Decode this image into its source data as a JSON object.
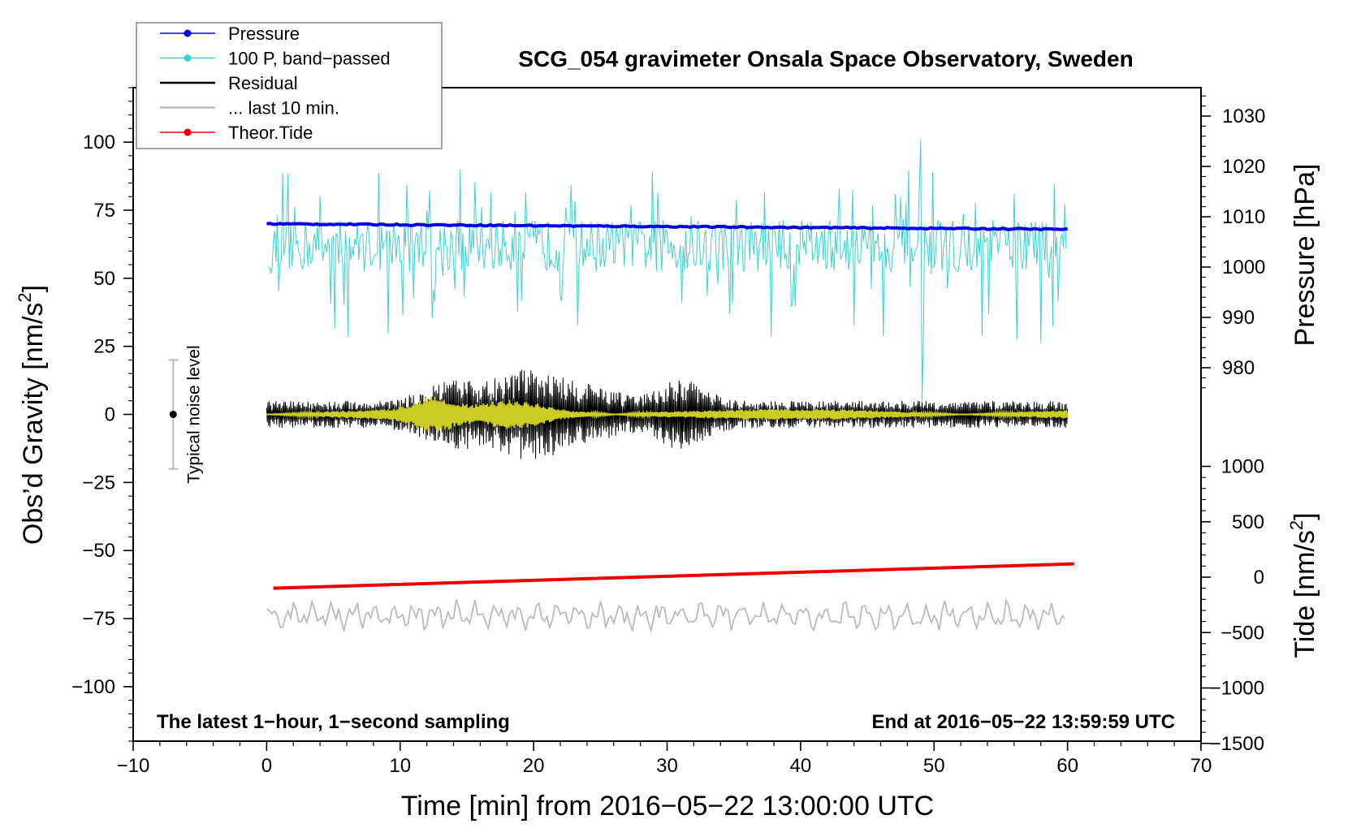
{
  "chart_data": {
    "type": "line",
    "title": "SCG_054 gravimeter Onsala Space Observatory, Sweden",
    "xlabel": "Time [min] from 2016−05−22 13:00:00 UTC",
    "ylabel_left": "Obs’d Gravity [nm/s",
    "ylabel_right_top": "Pressure [hPa]",
    "ylabel_right_bottom": "Tide [nm/s",
    "superscript": "2",
    "close_bracket": "]",
    "xlim": [
      -10,
      70
    ],
    "ylim_left": [
      -120,
      120
    ],
    "pressure_range": [
      975,
      1035
    ],
    "tide_range": [
      -1500,
      1000
    ],
    "x_ticks": [
      "−10",
      "0",
      "10",
      "20",
      "30",
      "40",
      "50",
      "60",
      "70"
    ],
    "x_tick_values": [
      -10,
      0,
      10,
      20,
      30,
      40,
      50,
      60,
      70
    ],
    "y_left_ticks": [
      "100",
      "75",
      "50",
      "25",
      "0",
      "−25",
      "−50",
      "−75",
      "−100"
    ],
    "y_left_tick_values": [
      100,
      75,
      50,
      25,
      0,
      -25,
      -50,
      -75,
      -100
    ],
    "pressure_ticks": [
      "1030",
      "1020",
      "1010",
      "1000",
      "990",
      "980"
    ],
    "pressure_tick_values": [
      1030,
      1020,
      1010,
      1000,
      990,
      980
    ],
    "tide_ticks": [
      "1000",
      "500",
      "0",
      "−500",
      "−1000",
      "−1500"
    ],
    "tide_tick_values": [
      1000,
      500,
      0,
      -500,
      -1000,
      -1500
    ],
    "legend": [
      {
        "label": "Pressure",
        "color": "#0000e6",
        "marker": true
      },
      {
        "label": "100 P, band−passed",
        "color": "#40d0d0",
        "marker": true
      },
      {
        "label": "Residual",
        "color": "#000000",
        "marker": false
      },
      {
        "label": "... last 10 min.",
        "color": "#bbbbbb",
        "marker": false
      },
      {
        "label": "Theor.Tide",
        "color": "#ee0000",
        "marker": true
      }
    ],
    "noise_label": "Typical noise level",
    "noise_bar": {
      "x": -7,
      "center": 0,
      "half_range": 20
    },
    "footer_left": "The latest 1−hour, 1−second sampling",
    "footer_right": "End at 2016−05−22 13:59:59 UTC",
    "series": [
      {
        "name": "Pressure",
        "axis": "pressure",
        "color": "#0000e6",
        "x_range": [
          0,
          60
        ],
        "start": 1008.6,
        "end": 1007.5
      },
      {
        "name": "100 P, band−passed",
        "axis": "gravity",
        "color": "#40d0d0",
        "x_range": [
          0,
          60
        ],
        "center": 62,
        "spread": 12,
        "spike": {
          "x": 49,
          "max": 101,
          "min": 5
        }
      },
      {
        "name": "Residual",
        "axis": "gravity",
        "color": "#000000",
        "x_range": [
          0,
          60
        ],
        "center": 0,
        "max_amplitude": 25,
        "min_value": -24
      },
      {
        "name": "Residual (yellow overlay)",
        "axis": "gravity",
        "color": "#cccc22",
        "x_range": [
          0,
          60
        ],
        "center": 0,
        "max_amplitude": 7
      },
      {
        "name": "... last 10 min.",
        "axis": "gravity",
        "color": "#bbbbbb",
        "x_range": [
          0,
          60
        ],
        "center": -74,
        "spread": 5
      },
      {
        "name": "Theor.Tide",
        "axis": "tide",
        "color": "#ee0000",
        "x_range": [
          0.5,
          60.5
        ],
        "start": -100,
        "end": 120
      }
    ]
  }
}
